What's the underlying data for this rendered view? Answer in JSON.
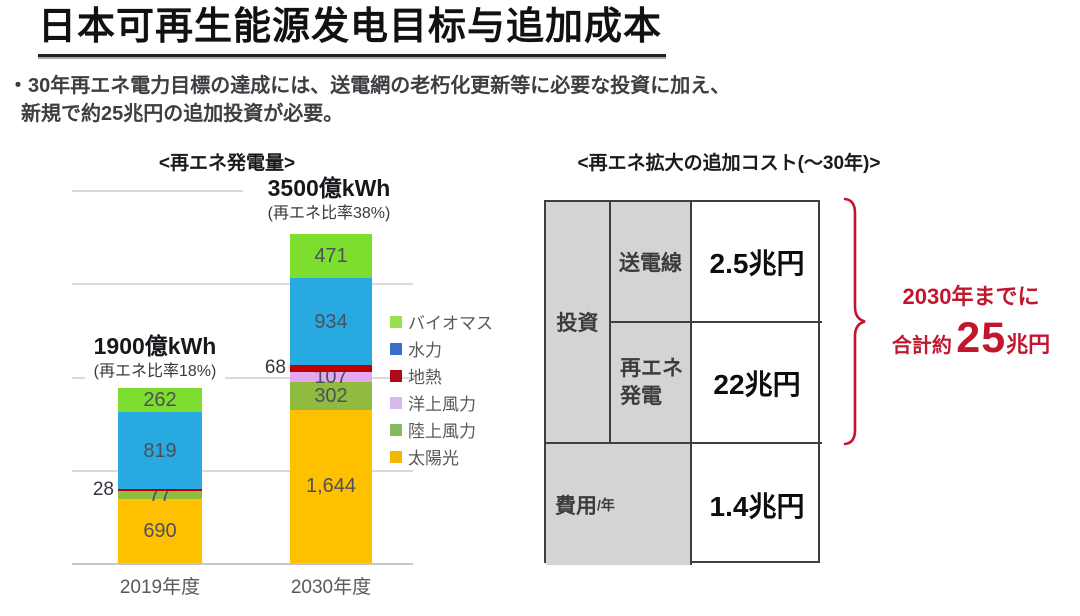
{
  "page": {
    "title": "日本可再生能源发电目标与追加成本",
    "bullet_line1": "・30年再エネ電力目標の達成には、送電網の老朽化更新等に必要な投資に加え、",
    "bullet_line2": "新規で約25兆円の追加投資が必要。"
  },
  "chart_data": {
    "type": "bar",
    "stacked": true,
    "title": "<再エネ発電量>",
    "unit": "億kWh",
    "categories": [
      "2019年度",
      "2030年度"
    ],
    "totals": [
      {
        "headline": "1900億kWh",
        "subline": "(再エネ比率18%)"
      },
      {
        "headline": "3500億kWh",
        "subline": "(再エネ比率38%)"
      }
    ],
    "ylim": [
      0,
      4000
    ],
    "grid_step": 1000,
    "grid": true,
    "legend_position": "right",
    "series": [
      {
        "name": "太陽光",
        "color": "#FFC000",
        "legend_color": "#F2B705",
        "values": [
          690,
          1644
        ],
        "labels": [
          "690",
          "1,644"
        ]
      },
      {
        "name": "陸上風力",
        "color": "#8FBC3E",
        "legend_color": "#85BA5E",
        "values": [
          77,
          302
        ],
        "labels": [
          "77",
          "302"
        ]
      },
      {
        "name": "洋上風力",
        "color": "#E3A8F0",
        "legend_color": "#D9B8EF",
        "values": [
          0,
          107
        ],
        "labels": [
          "",
          "107"
        ]
      },
      {
        "name": "地熱",
        "color": "#C00000",
        "legend_color": "#AE0A18",
        "values": [
          28,
          68
        ],
        "labels": [
          "28",
          "68"
        ],
        "label_position": "outside-left"
      },
      {
        "name": "水力",
        "color": "#29A9E1",
        "legend_color": "#3A6EC8",
        "values": [
          819,
          934
        ],
        "labels": [
          "819",
          "934"
        ]
      },
      {
        "name": "バイオマス",
        "color": "#7EDE2F",
        "legend_color": "#98E04C",
        "values": [
          262,
          471
        ],
        "labels": [
          "262",
          "471"
        ]
      }
    ],
    "legend_order_top_to_bottom": [
      "バイオマス",
      "水力",
      "地熱",
      "洋上風力",
      "陸上風力",
      "太陽光"
    ]
  },
  "cost_panel": {
    "title": "<再エネ拡大の追加コスト(～30年)>",
    "table": {
      "invest_label": "投資",
      "rows": [
        {
          "item": "送電線",
          "value": "2.5兆円"
        },
        {
          "item": "再エネ\n発電",
          "value": "22兆円"
        }
      ],
      "cost_label_main": "費用",
      "cost_label_sub": "/年",
      "cost_value": "1.4兆円"
    },
    "callout": {
      "line1": "2030年までに",
      "prefix": "合計約",
      "big_number": "25",
      "unit": "兆円",
      "color": "#C0172E"
    }
  },
  "colors": {
    "table_header_bg": "#D4D4D4",
    "table_border": "#3F3F3F",
    "grid_line": "#DADADA",
    "accent_red": "#C0172E"
  }
}
